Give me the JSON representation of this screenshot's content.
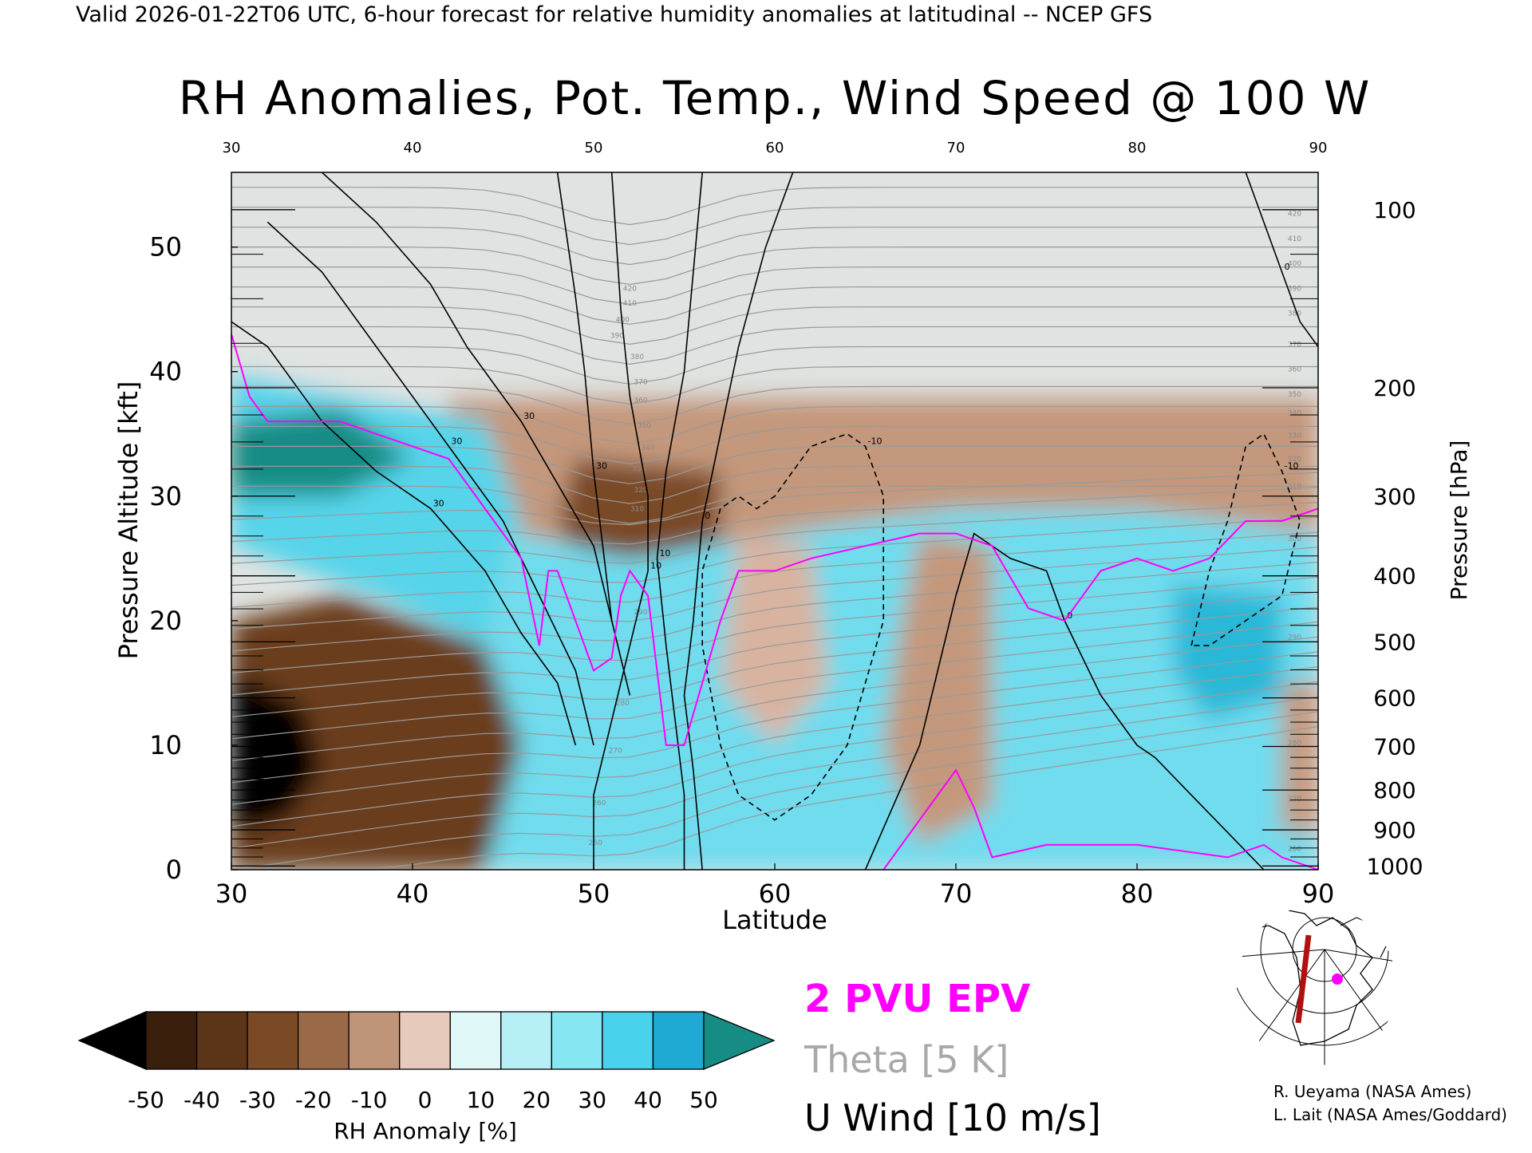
{
  "header": {
    "valid_line": "Valid 2026-01-22T06 UTC, 6-hour forecast for relative humidity anomalies at latitudinal -- NCEP GFS",
    "title": "RH Anomalies, Pot. Temp., Wind Speed @ 100 W"
  },
  "chart_data": {
    "type": "heatmap",
    "title": "RH Anomalies, Pot. Temp., Wind Speed @ 100 W",
    "xlabel": "Latitude",
    "ylabel": "Pressure Altitude [kft]",
    "y2label": "Pressure [hPa]",
    "xlim": [
      30,
      90
    ],
    "ylim": [
      0,
      56
    ],
    "x_ticks": [
      "30",
      "40",
      "50",
      "60",
      "70",
      "80",
      "90"
    ],
    "x_top_ticks": [
      "30",
      "40",
      "50",
      "60",
      "70",
      "80",
      "90"
    ],
    "y_ticks": [
      "0",
      "10",
      "20",
      "30",
      "40",
      "50"
    ],
    "pressure_ticks": [
      {
        "label": "100",
        "kft": 53
      },
      {
        "label": "200",
        "kft": 38.7
      },
      {
        "label": "300",
        "kft": 30
      },
      {
        "label": "400",
        "kft": 23.6
      },
      {
        "label": "500",
        "kft": 18.3
      },
      {
        "label": "600",
        "kft": 13.8
      },
      {
        "label": "700",
        "kft": 9.9
      },
      {
        "label": "800",
        "kft": 6.4
      },
      {
        "label": "900",
        "kft": 3.2
      },
      {
        "label": "1000",
        "kft": 0.3
      }
    ],
    "colorbar": {
      "label": "RH Anomaly [%]",
      "ticks": [
        "-50",
        "-40",
        "-30",
        "-20",
        "-10",
        "0",
        "10",
        "20",
        "30",
        "40",
        "50"
      ],
      "colors": [
        "#3a1f0c",
        "#5c3417",
        "#7a4a26",
        "#9a6a48",
        "#bf9478",
        "#e6cbbc",
        "#dff7f7",
        "#b6f0f6",
        "#86e6f2",
        "#48d2ec",
        "#1eaad2"
      ],
      "under_color": "#000000",
      "over_color": "#168c84"
    },
    "rh_regions": [
      {
        "name": "upper_stratosphere",
        "color": "#dfe3e1",
        "points": [
          [
            30,
            56
          ],
          [
            90,
            56
          ],
          [
            90,
            38
          ],
          [
            30,
            38
          ]
        ]
      },
      {
        "name": "tropopause_brown",
        "color": "#c4987c",
        "points": [
          [
            42,
            38
          ],
          [
            90,
            38
          ],
          [
            90,
            27
          ],
          [
            80,
            29
          ],
          [
            70,
            29
          ],
          [
            60,
            27
          ],
          [
            52,
            25
          ],
          [
            46,
            27
          ],
          [
            42,
            33
          ]
        ]
      },
      {
        "name": "jet_core_brown",
        "color": "#7a4a26",
        "points": [
          [
            49,
            33
          ],
          [
            57,
            32
          ],
          [
            57,
            24
          ],
          [
            54,
            22
          ],
          [
            50,
            23
          ],
          [
            48,
            28
          ]
        ]
      },
      {
        "name": "lower_cyan",
        "color": "#6fdcee",
        "points": [
          [
            44,
            0
          ],
          [
            90,
            0
          ],
          [
            90,
            27
          ],
          [
            80,
            29
          ],
          [
            70,
            29
          ],
          [
            60,
            27
          ],
          [
            52,
            25
          ],
          [
            46,
            27
          ],
          [
            44,
            18
          ]
        ]
      },
      {
        "name": "southwest_cyan",
        "color": "#57d4ea",
        "points": [
          [
            30,
            40
          ],
          [
            44,
            36
          ],
          [
            46,
            28
          ],
          [
            44,
            18
          ],
          [
            38,
            22
          ],
          [
            30,
            26
          ]
        ]
      },
      {
        "name": "southwest_teal",
        "color": "#168c84",
        "points": [
          [
            30,
            36
          ],
          [
            36,
            37
          ],
          [
            40,
            33
          ],
          [
            36,
            30
          ],
          [
            30,
            30
          ]
        ]
      },
      {
        "name": "southwest_brown",
        "color": "#6a3e1c",
        "points": [
          [
            30,
            20
          ],
          [
            36,
            22
          ],
          [
            44,
            18
          ],
          [
            46,
            10
          ],
          [
            44,
            0
          ],
          [
            30,
            0
          ]
        ]
      },
      {
        "name": "southwest_black",
        "color": "#000000",
        "points": [
          [
            30,
            16
          ],
          [
            34,
            13
          ],
          [
            35,
            8
          ],
          [
            33,
            4
          ],
          [
            30,
            3
          ]
        ]
      },
      {
        "name": "mid_brown_70",
        "color": "#c4987c",
        "points": [
          [
            68,
            27
          ],
          [
            72,
            26
          ],
          [
            72,
            5
          ],
          [
            68,
            2
          ],
          [
            66,
            10
          ],
          [
            67,
            20
          ]
        ]
      },
      {
        "name": "brown_60",
        "color": "#d8b4a0",
        "points": [
          [
            58,
            27
          ],
          [
            62,
            26
          ],
          [
            63,
            15
          ],
          [
            60,
            10
          ],
          [
            57,
            15
          ]
        ]
      },
      {
        "name": "dark_cyan_85",
        "color": "#2cb8d8",
        "points": [
          [
            82,
            23
          ],
          [
            88,
            22
          ],
          [
            88,
            14
          ],
          [
            84,
            12
          ],
          [
            82,
            16
          ]
        ]
      },
      {
        "name": "brown_88",
        "color": "#c4987c",
        "points": [
          [
            88,
            15
          ],
          [
            90,
            15
          ],
          [
            90,
            3
          ],
          [
            88,
            3
          ]
        ]
      }
    ],
    "theta": {
      "label": "Theta [5 K]",
      "interval_K": 5,
      "labeled_values": [
        "420",
        "410",
        "400",
        "390",
        "380",
        "370",
        "360",
        "350",
        "340",
        "330",
        "320",
        "310",
        "300",
        "290",
        "280",
        "270",
        "260",
        "250"
      ]
    },
    "u_wind": {
      "label": "U Wind [10 m/s]",
      "interval_ms": 10,
      "contours": [
        {
          "value": "30",
          "dashed": false,
          "points": [
            [
              30,
              44
            ],
            [
              32,
              42
            ],
            [
              35,
              36
            ],
            [
              38,
              32
            ],
            [
              41,
              29
            ],
            [
              44,
              24
            ],
            [
              46,
              19
            ],
            [
              48,
              15
            ],
            [
              49,
              10
            ]
          ]
        },
        {
          "value": "30",
          "dashed": false,
          "points": [
            [
              32,
              52
            ],
            [
              35,
              48
            ],
            [
              38,
              42
            ],
            [
              40,
              38
            ],
            [
              42,
              34
            ],
            [
              45,
              28
            ],
            [
              47,
              22
            ],
            [
              49,
              16
            ],
            [
              50,
              10
            ]
          ]
        },
        {
          "value": "30",
          "dashed": false,
          "points": [
            [
              35,
              56
            ],
            [
              38,
              52
            ],
            [
              41,
              47
            ],
            [
              43,
              42
            ],
            [
              46,
              36
            ],
            [
              48,
              31
            ],
            [
              50,
              26
            ],
            [
              51,
              20
            ],
            [
              52,
              14
            ]
          ]
        },
        {
          "value": "30",
          "dashed": false,
          "points": [
            [
              48,
              56
            ],
            [
              49,
              46
            ],
            [
              49.5,
              40
            ],
            [
              50,
              32
            ],
            [
              50.5,
              26
            ],
            [
              51,
              20
            ]
          ]
        },
        {
          "value": "10",
          "dashed": false,
          "points": [
            [
              51,
              56
            ],
            [
              51.5,
              45
            ],
            [
              52,
              38
            ],
            [
              53,
              30
            ],
            [
              53,
              24
            ],
            [
              52,
              18
            ],
            [
              51,
              12
            ],
            [
              50,
              6
            ],
            [
              50,
              0
            ]
          ]
        },
        {
          "value": "10",
          "dashed": false,
          "points": [
            [
              56,
              56
            ],
            [
              55.5,
              48
            ],
            [
              55,
              40
            ],
            [
              54,
              32
            ],
            [
              53.5,
              25
            ],
            [
              54,
              18
            ],
            [
              54.5,
              12
            ],
            [
              55,
              6
            ],
            [
              55,
              0
            ]
          ]
        },
        {
          "value": "0",
          "dashed": false,
          "points": [
            [
              61,
              56
            ],
            [
              59.5,
              50
            ],
            [
              58,
              42
            ],
            [
              57,
              35
            ],
            [
              56,
              28
            ],
            [
              55.5,
              20
            ],
            [
              55,
              14
            ],
            [
              55.5,
              8
            ],
            [
              56,
              0
            ]
          ]
        },
        {
          "value": "0",
          "dashed": false,
          "points": [
            [
              86,
              56
            ],
            [
              87,
              52
            ],
            [
              88,
              48
            ],
            [
              89,
              44
            ],
            [
              90,
              42
            ]
          ]
        },
        {
          "value": "0",
          "dashed": false,
          "points": [
            [
              65,
              0
            ],
            [
              68,
              10
            ],
            [
              70,
              22
            ],
            [
              71,
              27
            ],
            [
              73,
              25
            ],
            [
              75,
              24
            ],
            [
              76,
              20
            ],
            [
              78,
              14
            ],
            [
              80,
              10
            ],
            [
              81,
              9
            ],
            [
              83,
              6
            ],
            [
              85,
              3
            ],
            [
              87,
              0
            ]
          ]
        },
        {
          "value": "-10",
          "dashed": true,
          "points": [
            [
              56,
              18
            ],
            [
              56,
              24
            ],
            [
              57,
              29
            ],
            [
              58,
              30
            ],
            [
              59,
              29
            ],
            [
              60,
              30
            ],
            [
              61,
              32
            ],
            [
              62,
              34
            ],
            [
              64,
              35
            ],
            [
              65,
              34
            ],
            [
              66,
              30
            ],
            [
              66,
              20
            ],
            [
              65,
              15
            ],
            [
              64,
              10
            ],
            [
              62,
              6
            ],
            [
              60,
              4
            ],
            [
              58,
              6
            ],
            [
              57,
              10
            ],
            [
              56,
              18
            ]
          ]
        },
        {
          "value": "-10",
          "dashed": true,
          "points": [
            [
              83,
              18
            ],
            [
              84,
              24
            ],
            [
              85,
              28
            ],
            [
              86,
              34
            ],
            [
              87,
              35
            ],
            [
              88,
              32
            ],
            [
              89,
              28
            ],
            [
              88,
              22
            ],
            [
              86,
              20
            ],
            [
              84,
              18
            ],
            [
              83,
              18
            ]
          ]
        }
      ]
    },
    "epv_2pvu": {
      "label": "2 PVU EPV",
      "color": "#ff00ff",
      "points": [
        [
          30,
          43
        ],
        [
          31,
          38
        ],
        [
          32,
          36
        ],
        [
          36,
          36
        ],
        [
          38,
          35
        ],
        [
          40,
          34
        ],
        [
          42,
          33
        ],
        [
          44,
          29
        ],
        [
          45,
          27
        ],
        [
          46,
          25
        ],
        [
          47,
          18
        ],
        [
          47.5,
          24
        ],
        [
          48,
          24
        ],
        [
          49,
          20
        ],
        [
          50,
          16
        ],
        [
          51,
          17
        ],
        [
          51.5,
          22
        ],
        [
          52,
          24
        ],
        [
          53,
          22
        ],
        [
          54,
          10
        ],
        [
          55,
          10
        ],
        [
          57,
          20
        ],
        [
          58,
          24
        ],
        [
          60,
          24
        ],
        [
          62,
          25
        ],
        [
          65,
          26
        ],
        [
          68,
          27
        ],
        [
          70,
          27
        ],
        [
          72,
          26
        ],
        [
          74,
          21
        ],
        [
          76,
          20
        ],
        [
          78,
          24
        ],
        [
          80,
          25
        ],
        [
          82,
          24
        ],
        [
          84,
          25
        ],
        [
          86,
          28
        ],
        [
          88,
          28
        ],
        [
          90,
          29
        ]
      ]
    },
    "epv_2pvu_low": {
      "color": "#ff00ff",
      "points": [
        [
          66,
          0
        ],
        [
          70,
          8
        ],
        [
          71,
          5
        ],
        [
          72,
          1
        ],
        [
          75,
          2
        ],
        [
          80,
          2
        ],
        [
          85,
          1
        ],
        [
          87,
          2
        ],
        [
          88,
          1
        ],
        [
          90,
          0
        ]
      ]
    }
  },
  "legend": {
    "epv": "2 PVU EPV",
    "theta": "Theta [5 K]",
    "uwind": "U Wind [10 m/s]",
    "epv_color": "#ff00ff",
    "theta_color": "#a8a8a8",
    "uwind_color": "#000000"
  },
  "credits": {
    "line1": "R. Ueyama (NASA Ames)",
    "line2": "L. Lait (NASA Ames/Goddard)"
  },
  "inset_map": {
    "section_line_color": "#b01010",
    "marker_color": "#ff00ff"
  }
}
